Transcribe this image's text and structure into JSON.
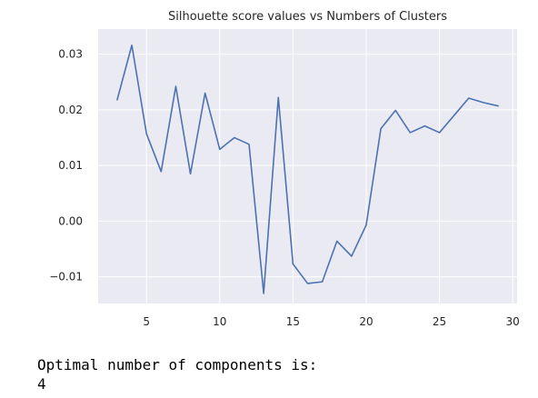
{
  "chart_data": {
    "type": "line",
    "title": "Silhouette score values vs Numbers of Clusters",
    "xlabel": "",
    "ylabel": "",
    "xlim": [
      1.7,
      30.3
    ],
    "ylim": [
      -0.0148,
      0.0345
    ],
    "xticks": [
      5,
      10,
      15,
      20,
      25,
      30
    ],
    "yticks": [
      -0.01,
      0.0,
      0.01,
      0.02,
      0.03
    ],
    "xtick_labels": [
      "5",
      "10",
      "15",
      "20",
      "25",
      "30"
    ],
    "ytick_labels": [
      "−0.01",
      "0.00",
      "0.01",
      "0.02",
      "0.03"
    ],
    "grid": true,
    "background": "#eaeaf2",
    "grid_color": "#ffffff",
    "series": [
      {
        "name": "silhouette",
        "color": "#4c72b0",
        "x": [
          3,
          4,
          5,
          6,
          7,
          8,
          9,
          10,
          11,
          12,
          13,
          14,
          15,
          16,
          17,
          18,
          19,
          20,
          21,
          22,
          23,
          24,
          25,
          26,
          27,
          28,
          29
        ],
        "y": [
          0.0218,
          0.0316,
          0.0157,
          0.0089,
          0.0242,
          0.0085,
          0.023,
          0.0129,
          0.015,
          0.0138,
          -0.013,
          0.0222,
          -0.0077,
          -0.0112,
          -0.0109,
          -0.0036,
          -0.0063,
          -0.0007,
          0.0166,
          0.0199,
          0.0159,
          0.0171,
          0.0159,
          0.019,
          0.0221,
          0.0213,
          0.0207
        ]
      }
    ]
  },
  "output": {
    "line1": "Optimal number of components is:",
    "line2": "4"
  }
}
